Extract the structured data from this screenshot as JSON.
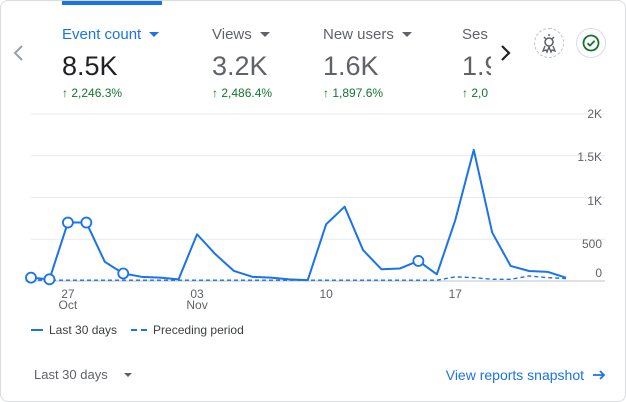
{
  "metrics": [
    {
      "label": "Event count",
      "value": "8.5K",
      "delta": "↑ 2,246.3%",
      "active": true
    },
    {
      "label": "Views",
      "value": "3.2K",
      "delta": "↑ 2,486.4%",
      "active": false
    },
    {
      "label": "New users",
      "value": "1.6K",
      "delta": "↑ 1,897.6%",
      "active": false
    },
    {
      "label": "Ses",
      "value": "1.9",
      "delta": "↑ 2,0",
      "active": false
    }
  ],
  "icons": {
    "prev": "chevron-left-icon",
    "next": "chevron-right-icon",
    "insights": "insights-icon",
    "check": "check-circle-icon",
    "arrow": "arrow-right-icon"
  },
  "colors": {
    "accent": "#1a73e8",
    "positive": "#137333"
  },
  "chart_data": {
    "type": "line",
    "x": [
      "Oct 25",
      "Oct 26",
      "Oct 27",
      "Oct 28",
      "Oct 29",
      "Oct 30",
      "Oct 31",
      "Nov 01",
      "Nov 02",
      "Nov 03",
      "Nov 04",
      "Nov 05",
      "Nov 06",
      "Nov 07",
      "Nov 08",
      "Nov 09",
      "Nov 10",
      "Nov 11",
      "Nov 12",
      "Nov 13",
      "Nov 14",
      "Nov 15",
      "Nov 16",
      "Nov 17",
      "Nov 18",
      "Nov 19",
      "Nov 20",
      "Nov 21",
      "Nov 22",
      "Nov 23"
    ],
    "x_ticks": [
      {
        "index": 2,
        "day": "27",
        "month": "Oct"
      },
      {
        "index": 9,
        "day": "03",
        "month": "Nov"
      },
      {
        "index": 16,
        "day": "10",
        "month": ""
      },
      {
        "index": 23,
        "day": "17",
        "month": ""
      }
    ],
    "series": [
      {
        "name": "Last 30 days",
        "style": "solid",
        "values": [
          40,
          20,
          700,
          700,
          230,
          90,
          50,
          40,
          20,
          560,
          320,
          120,
          50,
          40,
          20,
          10,
          680,
          890,
          370,
          140,
          150,
          240,
          80,
          730,
          1570,
          580,
          180,
          120,
          110,
          40
        ]
      },
      {
        "name": "Preceding period",
        "style": "dashed",
        "values": [
          10,
          10,
          10,
          10,
          10,
          10,
          10,
          10,
          10,
          10,
          10,
          10,
          10,
          10,
          10,
          10,
          10,
          10,
          10,
          10,
          10,
          10,
          10,
          50,
          40,
          20,
          20,
          60,
          40,
          30
        ]
      }
    ],
    "marker_indices": [
      0,
      1,
      2,
      3,
      5,
      21
    ],
    "y_ticks": [
      "0",
      "500",
      "1K",
      "1.5K",
      "2K"
    ],
    "y_tick_values": [
      0,
      500,
      1000,
      1500,
      2000
    ],
    "ylim": [
      0,
      2000
    ],
    "grid": true,
    "legend": "bottom-left"
  },
  "footer": {
    "date_range": "Last 30 days",
    "snapshot_link": "View reports snapshot"
  }
}
